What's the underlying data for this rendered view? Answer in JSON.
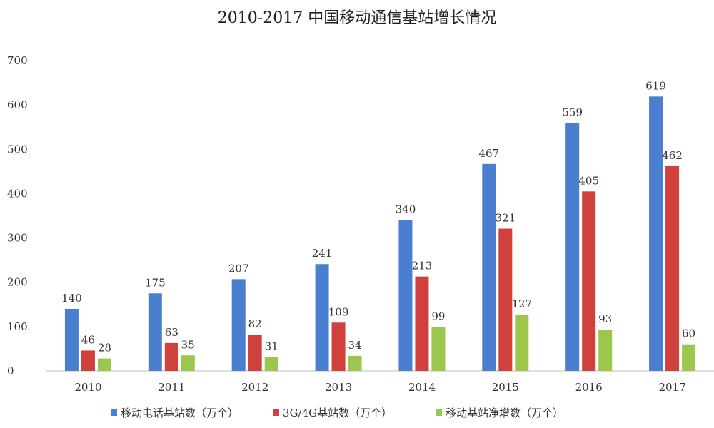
{
  "chart_data": {
    "type": "bar",
    "title": "2010-2017 中国移动通信基站增长情况",
    "xlabel": "",
    "ylabel": "",
    "categories": [
      "2010",
      "2011",
      "2012",
      "2013",
      "2014",
      "2015",
      "2016",
      "2017"
    ],
    "ylim": [
      0,
      700
    ],
    "yticks": [
      0,
      100,
      200,
      300,
      400,
      500,
      600,
      700
    ],
    "grid": false,
    "legend_position": "bottom",
    "series": [
      {
        "name": "移动电话基站数（万个）",
        "color": "#4a7fd0",
        "values": [
          140,
          175,
          207,
          241,
          340,
          467,
          559,
          619
        ]
      },
      {
        "name": "3G/4G基站数（万个）",
        "color": "#d0403c",
        "values": [
          46,
          63,
          82,
          109,
          213,
          321,
          405,
          462
        ]
      },
      {
        "name": "移动基站净增数（万个）",
        "color": "#9bc74c",
        "values": [
          28,
          35,
          31,
          34,
          99,
          127,
          93,
          60
        ]
      }
    ]
  }
}
